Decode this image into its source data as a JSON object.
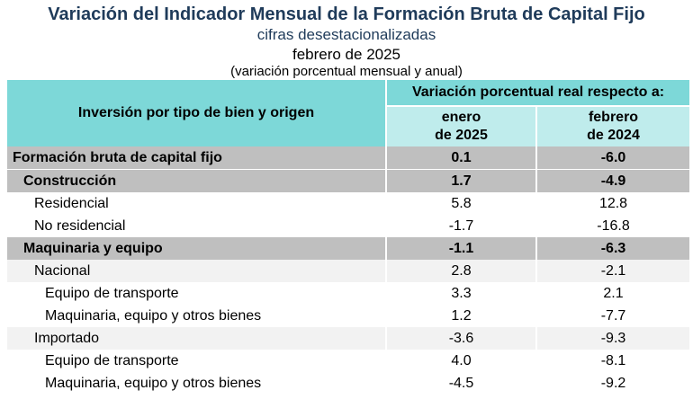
{
  "header": {
    "title": "Variación del Indicador Mensual de la Formación Bruta de Capital Fijo",
    "subtitle": "cifras desestacionalizadas",
    "date": "febrero de 2025",
    "note": "(variación porcentual mensual y anual)"
  },
  "table": {
    "col_left": "Inversión por tipo de bien y origen",
    "col_group": "Variación porcentual real respecto a:",
    "col_a_line1": "enero",
    "col_a_line2": "de 2025",
    "col_b_line1": "febrero",
    "col_b_line2": "de 2024",
    "rows": [
      {
        "label": "Formación bruta de capital fijo",
        "a": "0.1",
        "b": "-6.0"
      },
      {
        "label": "Construcción",
        "a": "1.7",
        "b": "-4.9"
      },
      {
        "label": "Residencial",
        "a": "5.8",
        "b": "12.8"
      },
      {
        "label": "No residencial",
        "a": "-1.7",
        "b": "-16.8"
      },
      {
        "label": "Maquinaria y equipo",
        "a": "-1.1",
        "b": "-6.3"
      },
      {
        "label": "Nacional",
        "a": "2.8",
        "b": "-2.1"
      },
      {
        "label": "Equipo de transporte",
        "a": "3.3",
        "b": "2.1"
      },
      {
        "label": "Maquinaria, equipo y otros bienes",
        "a": "1.2",
        "b": "-7.7"
      },
      {
        "label": "Importado",
        "a": "-3.6",
        "b": "-9.3"
      },
      {
        "label": "Equipo de transporte",
        "a": "4.0",
        "b": "-8.1"
      },
      {
        "label": "Maquinaria, equipo y otros bienes",
        "a": "-4.5",
        "b": "-9.2"
      }
    ]
  },
  "colors": {
    "title": "#1f3b5a",
    "header_dark": "#7dd8d8",
    "header_light": "#bfecec",
    "row_gray": "#bfbfbf",
    "row_light": "#f2f2f2"
  }
}
